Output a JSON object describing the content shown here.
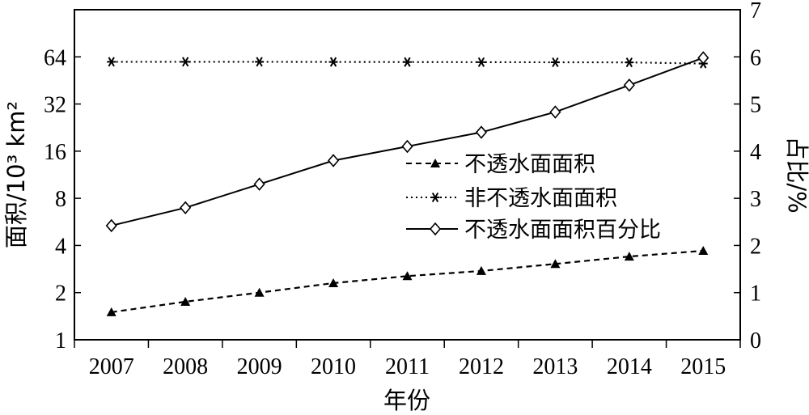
{
  "chart_data": {
    "type": "line",
    "title": "",
    "xlabel": "年份",
    "ylabel_left": "面积/10³ km²",
    "ylabel_right": "占比/%",
    "left_axis_scale": "log2",
    "left_ylim": [
      1,
      128
    ],
    "left_ticks": [
      1,
      2,
      4,
      8,
      16,
      32,
      64
    ],
    "right_ylim": [
      0,
      7
    ],
    "right_ticks": [
      0,
      1,
      2,
      3,
      4,
      5,
      6,
      7
    ],
    "x": [
      "2007",
      "2008",
      "2009",
      "2010",
      "2011",
      "2012",
      "2013",
      "2014",
      "2015"
    ],
    "grid": false,
    "legend_position": "center-right",
    "series": [
      {
        "name": "不透水面面积",
        "axis": "left",
        "line_style": "dashed",
        "marker": "filled-triangle",
        "values": [
          1.5,
          1.75,
          2.0,
          2.3,
          2.55,
          2.75,
          3.05,
          3.4,
          3.7
        ]
      },
      {
        "name": "非不透水面面积",
        "axis": "left",
        "line_style": "dotted",
        "marker": "asterisk",
        "values": [
          59.5,
          59.5,
          59.5,
          59.4,
          59.3,
          59.2,
          59.1,
          59.0,
          58.0
        ]
      },
      {
        "name": "不透水面面积百分比",
        "axis": "right",
        "line_style": "solid",
        "marker": "open-diamond",
        "values": [
          2.42,
          2.8,
          3.3,
          3.8,
          4.1,
          4.4,
          4.83,
          5.4,
          5.98
        ]
      }
    ]
  },
  "colors": {
    "ink": "#000000",
    "background": "#ffffff"
  }
}
